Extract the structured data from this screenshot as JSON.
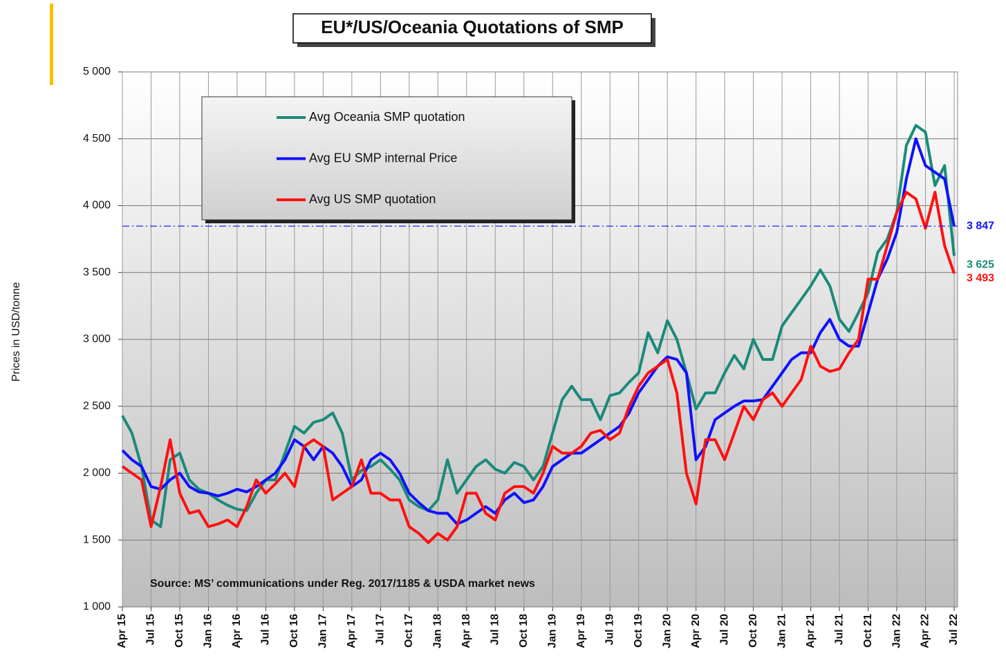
{
  "chart_data": {
    "type": "line",
    "title": "EU*/US/Oceania Quotations of SMP",
    "y_label": "Prices in USD/tonne",
    "annotation": "Source: MS’ communications under Reg. 2017/1185 & USDA  market news",
    "categories": [
      "Apr 15",
      null,
      null,
      "Jul 15",
      null,
      null,
      "Oct 15",
      null,
      null,
      "Jan 16",
      null,
      null,
      "Apr 16",
      null,
      null,
      "Jul 16",
      null,
      null,
      "Oct 16",
      null,
      null,
      "Jan 17",
      null,
      null,
      "Apr 17",
      null,
      null,
      "Jul 17",
      null,
      null,
      "Oct 17",
      null,
      null,
      "Jan 18",
      null,
      null,
      "Apr 18",
      null,
      null,
      "Jul 18",
      null,
      null,
      "Oct 18",
      null,
      null,
      "Jan 19",
      null,
      null,
      "Apr 19",
      null,
      null,
      "Jul 19",
      null,
      null,
      "Oct 19",
      null,
      null,
      "Jan 20",
      null,
      null,
      "Apr 20",
      null,
      null,
      "Jul 20",
      null,
      null,
      "Oct 20",
      null,
      null,
      "Jan 21",
      null,
      null,
      "Apr 21",
      null,
      null,
      "Jul 21",
      null,
      null,
      "Oct 21",
      null,
      null,
      "Jan 22",
      null,
      null,
      "Apr 22",
      null,
      null,
      "Jul 22"
    ],
    "series": [
      {
        "name": "Avg Oceania SMP quotation",
        "color": "#1a8a7a",
        "end_label": "3 625",
        "values": [
          2430,
          2300,
          2050,
          1650,
          1600,
          2100,
          2150,
          1950,
          1880,
          1850,
          1800,
          1760,
          1730,
          1720,
          1850,
          1950,
          1950,
          2150,
          2350,
          2300,
          2380,
          2400,
          2450,
          2300,
          1950,
          2020,
          2050,
          2100,
          2030,
          1950,
          1800,
          1750,
          1720,
          1800,
          2100,
          1850,
          1950,
          2050,
          2100,
          2030,
          2000,
          2080,
          2050,
          1950,
          2050,
          2300,
          2550,
          2650,
          2550,
          2550,
          2400,
          2580,
          2600,
          2680,
          2750,
          3050,
          2900,
          3140,
          3000,
          2750,
          2480,
          2600,
          2600,
          2750,
          2880,
          2780,
          3000,
          2850,
          2850,
          3100,
          3200,
          3300,
          3400,
          3520,
          3400,
          3150,
          3060,
          3200,
          3350,
          3650,
          3750,
          3950,
          4450,
          4600,
          4550,
          4150,
          4300,
          3625
        ]
      },
      {
        "name": "Avg EU SMP internal Price",
        "color": "#1010ff",
        "end_label": "3 847",
        "values": [
          2170,
          2100,
          2050,
          1900,
          1880,
          1950,
          2000,
          1900,
          1860,
          1850,
          1830,
          1850,
          1880,
          1860,
          1900,
          1950,
          2000,
          2100,
          2250,
          2200,
          2100,
          2200,
          2150,
          2050,
          1900,
          1950,
          2100,
          2150,
          2100,
          2000,
          1850,
          1780,
          1720,
          1700,
          1700,
          1620,
          1650,
          1700,
          1750,
          1700,
          1800,
          1850,
          1780,
          1800,
          1900,
          2050,
          2100,
          2150,
          2150,
          2200,
          2250,
          2300,
          2350,
          2450,
          2600,
          2700,
          2800,
          2870,
          2850,
          2750,
          2100,
          2200,
          2400,
          2450,
          2500,
          2540,
          2540,
          2550,
          2650,
          2750,
          2850,
          2900,
          2900,
          3050,
          3150,
          3000,
          2950,
          2950,
          3200,
          3450,
          3600,
          3800,
          4200,
          4500,
          4300,
          4250,
          4200,
          3847
        ]
      },
      {
        "name": "Avg US SMP quotation",
        "color": "#ff1010",
        "end_label": "3 493",
        "values": [
          2050,
          2000,
          1950,
          1600,
          1900,
          2250,
          1850,
          1700,
          1720,
          1600,
          1620,
          1650,
          1600,
          1750,
          1950,
          1850,
          1920,
          2000,
          1900,
          2200,
          2250,
          2200,
          1800,
          1850,
          1900,
          2100,
          1850,
          1850,
          1800,
          1800,
          1600,
          1550,
          1480,
          1550,
          1500,
          1600,
          1850,
          1850,
          1700,
          1650,
          1850,
          1900,
          1900,
          1850,
          2000,
          2200,
          2150,
          2150,
          2200,
          2300,
          2320,
          2250,
          2300,
          2500,
          2650,
          2750,
          2800,
          2850,
          2600,
          2000,
          1770,
          2250,
          2250,
          2100,
          2300,
          2500,
          2400,
          2550,
          2600,
          2500,
          2600,
          2700,
          2950,
          2800,
          2760,
          2780,
          2900,
          3000,
          3450,
          3450,
          3700,
          3950,
          4100,
          4050,
          3830,
          4100,
          3700,
          3493
        ]
      }
    ],
    "ylim": [
      1000,
      5000
    ],
    "yticks": [
      {
        "value": 1000,
        "label": "1 000"
      },
      {
        "value": 1500,
        "label": "1 500"
      },
      {
        "value": 2000,
        "label": "2 000"
      },
      {
        "value": 2500,
        "label": "2 500"
      },
      {
        "value": 3000,
        "label": "3 000"
      },
      {
        "value": 3500,
        "label": "3 500"
      },
      {
        "value": 4000,
        "label": "4 000"
      },
      {
        "value": 4500,
        "label": "4 500"
      },
      {
        "value": 5000,
        "label": "5 000"
      }
    ],
    "grid": true
  }
}
